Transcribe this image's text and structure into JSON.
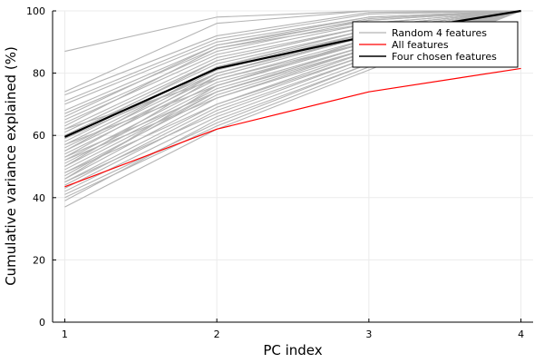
{
  "chart_data": {
    "type": "line",
    "xlabel": "PC index",
    "ylabel": "Cumulative variance explained (%)",
    "x": [
      1,
      2,
      3,
      4
    ],
    "xlim": [
      0.92,
      4.08
    ],
    "ylim": [
      0,
      100
    ],
    "xticks": [
      "1",
      "2",
      "3",
      "4"
    ],
    "yticks": [
      "0",
      "20",
      "40",
      "60",
      "80",
      "100"
    ],
    "grid": true,
    "legend_position": "top-right",
    "legend": [
      "Random 4 features",
      "All features",
      "Four chosen features"
    ],
    "colors": {
      "random": "#b4b4b4",
      "all": "#ff0000",
      "chosen": "#000000"
    },
    "series": [
      {
        "name": "Random 4 features",
        "group": "random",
        "values": [
          [
            87,
            98,
            100,
            100
          ],
          [
            74,
            96,
            100,
            100
          ],
          [
            73,
            92,
            99.5,
            100
          ],
          [
            71,
            91,
            99,
            100
          ],
          [
            70,
            90,
            98,
            100
          ],
          [
            68,
            89,
            98,
            100
          ],
          [
            67,
            88,
            97.5,
            100
          ],
          [
            66,
            89,
            97,
            100
          ],
          [
            65,
            87,
            97,
            100
          ],
          [
            64,
            86,
            96,
            100
          ],
          [
            63,
            88,
            96,
            100
          ],
          [
            62,
            85,
            95,
            100
          ],
          [
            61,
            84,
            95,
            100
          ],
          [
            60,
            83,
            94,
            100
          ],
          [
            59,
            84,
            95,
            100
          ],
          [
            58,
            82,
            93,
            100
          ],
          [
            57,
            81,
            93,
            100
          ],
          [
            56,
            80,
            92,
            100
          ],
          [
            55,
            79,
            92,
            100
          ],
          [
            54,
            78,
            91,
            100
          ],
          [
            53,
            80,
            92,
            100
          ],
          [
            52,
            77,
            90,
            100
          ],
          [
            51,
            76,
            90,
            100
          ],
          [
            50,
            75,
            89,
            100
          ],
          [
            49,
            74,
            89,
            100
          ],
          [
            48,
            73,
            88,
            100
          ],
          [
            47,
            74,
            88,
            100
          ],
          [
            46,
            72,
            87,
            100
          ],
          [
            45,
            70,
            86,
            100
          ],
          [
            44,
            69,
            86,
            100
          ],
          [
            43,
            68,
            85,
            100
          ],
          [
            42,
            66,
            84,
            100
          ],
          [
            41,
            64,
            83,
            100
          ],
          [
            40,
            63,
            82,
            100
          ],
          [
            39,
            65,
            83,
            100
          ],
          [
            37,
            62,
            81,
            100
          ],
          [
            62,
            78,
            90,
            100
          ],
          [
            57,
            76,
            91,
            100
          ],
          [
            55,
            82,
            94,
            100
          ],
          [
            52,
            72,
            88,
            100
          ],
          [
            48,
            70,
            87,
            100
          ],
          [
            46,
            76,
            90,
            100
          ],
          [
            59,
            80,
            93,
            100
          ],
          [
            53,
            74,
            89,
            100
          ],
          [
            50,
            79,
            92,
            100
          ],
          [
            45,
            67,
            85,
            100
          ]
        ]
      },
      {
        "name": "All features",
        "group": "all",
        "values": [
          43.5,
          62,
          74,
          81.5
        ]
      },
      {
        "name": "Four chosen features",
        "group": "chosen",
        "values": [
          59.5,
          81.5,
          92,
          100
        ]
      }
    ]
  }
}
